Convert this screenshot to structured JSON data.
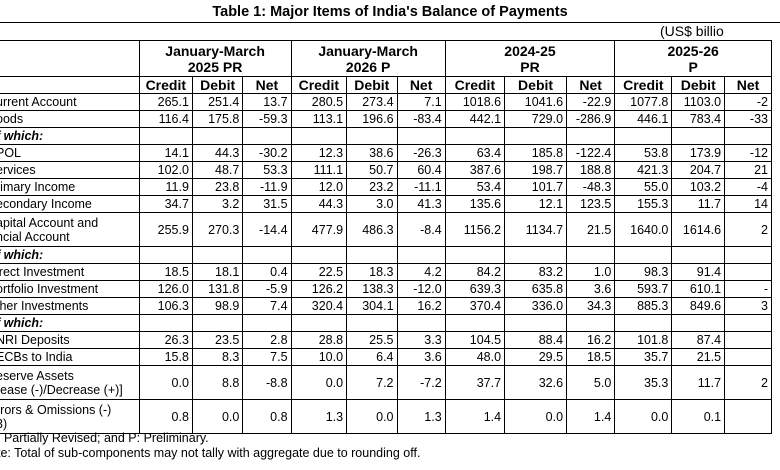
{
  "title": "Table 1: Major Items of India's Balance of Payments",
  "units": "(US$ billio",
  "periods": [
    "January-March\n2025 PR",
    "January-March\n2026 P",
    "2024-25\nPR",
    "2025-26\nP"
  ],
  "subheaders": [
    "Credit",
    "Debit",
    "Net",
    "Credit",
    "Debit",
    "Net",
    "Credit",
    "Debit",
    "Net",
    "Credit",
    "Debit",
    "Net"
  ],
  "rows": [
    {
      "label": "urrent Account",
      "values": [
        "265.1",
        "251.4",
        "13.7",
        "280.5",
        "273.4",
        "7.1",
        "1018.6",
        "1041.6",
        "-22.9",
        "1077.8",
        "1103.0",
        "-2"
      ]
    },
    {
      "label": "oods",
      "values": [
        "116.4",
        "175.8",
        "-59.3",
        "113.1",
        "196.6",
        "-83.4",
        "442.1",
        "729.0",
        "-286.9",
        "446.1",
        "783.4",
        "-33"
      ]
    },
    {
      "label": "f which:",
      "sub": true,
      "values": [
        "",
        "",
        "",
        "",
        "",
        "",
        "",
        "",
        "",
        "",
        "",
        ""
      ]
    },
    {
      "label": "POL",
      "values": [
        "14.1",
        "44.3",
        "-30.2",
        "12.3",
        "38.6",
        "-26.3",
        "63.4",
        "185.8",
        "-122.4",
        "53.8",
        "173.9",
        "-12"
      ]
    },
    {
      "label": "ervices",
      "values": [
        "102.0",
        "48.7",
        "53.3",
        "111.1",
        "50.7",
        "60.4",
        "387.6",
        "198.7",
        "188.8",
        "421.3",
        "204.7",
        "21"
      ]
    },
    {
      "label": "rimary Income",
      "values": [
        "11.9",
        "23.8",
        "-11.9",
        "12.0",
        "23.2",
        "-11.1",
        "53.4",
        "101.7",
        "-48.3",
        "55.0",
        "103.2",
        "-4"
      ]
    },
    {
      "label": "econdary Income",
      "values": [
        "34.7",
        "3.2",
        "31.5",
        "44.3",
        "3.0",
        "41.3",
        "135.6",
        "12.1",
        "123.5",
        "155.3",
        "11.7",
        "14"
      ]
    },
    {
      "label": "apital Account and\nncial Account",
      "tall": true,
      "values": [
        "255.9",
        "270.3",
        "-14.4",
        "477.9",
        "486.3",
        "-8.4",
        "1156.2",
        "1134.7",
        "21.5",
        "1640.0",
        "1614.6",
        "2"
      ]
    },
    {
      "label": "f which:",
      "sub": true,
      "values": [
        "",
        "",
        "",
        "",
        "",
        "",
        "",
        "",
        "",
        "",
        "",
        ""
      ]
    },
    {
      "label": "irect Investment",
      "values": [
        "18.5",
        "18.1",
        "0.4",
        "22.5",
        "18.3",
        "4.2",
        "84.2",
        "83.2",
        "1.0",
        "98.3",
        "91.4",
        ""
      ]
    },
    {
      "label": "ortfolio Investment",
      "values": [
        "126.0",
        "131.8",
        "-5.9",
        "126.2",
        "138.3",
        "-12.0",
        "639.3",
        "635.8",
        "3.6",
        "593.7",
        "610.1",
        "-"
      ]
    },
    {
      "label": "ther Investments",
      "values": [
        "106.3",
        "98.9",
        "7.4",
        "320.4",
        "304.1",
        "16.2",
        "370.4",
        "336.0",
        "34.3",
        "885.3",
        "849.6",
        "3"
      ]
    },
    {
      "label": "f which:",
      "sub": true,
      "values": [
        "",
        "",
        "",
        "",
        "",
        "",
        "",
        "",
        "",
        "",
        "",
        ""
      ]
    },
    {
      "label": "NRI Deposits",
      "values": [
        "26.3",
        "23.5",
        "2.8",
        "28.8",
        "25.5",
        "3.3",
        "104.5",
        "88.4",
        "16.2",
        "101.8",
        "87.4",
        ""
      ]
    },
    {
      "label": "ECBs to India",
      "values": [
        "15.8",
        "8.3",
        "7.5",
        "10.0",
        "6.4",
        "3.6",
        "48.0",
        "29.5",
        "18.5",
        "35.7",
        "21.5",
        ""
      ]
    },
    {
      "label": "eserve Assets\nrease (-)/Decrease (+)]",
      "tall": true,
      "values": [
        "0.0",
        "8.8",
        "-8.8",
        "0.0",
        "7.2",
        "-7.2",
        "37.7",
        "32.6",
        "5.0",
        "35.3",
        "11.7",
        "2"
      ]
    },
    {
      "label": "rrors & Omissions (-)\n3)",
      "tall": true,
      "values": [
        "0.8",
        "0.0",
        "0.8",
        "1.3",
        "0.0",
        "1.3",
        "1.4",
        "0.0",
        "1.4",
        "0.0",
        "0.1",
        ""
      ]
    }
  ],
  "footnotes": [
    ": Partially Revised; and P: Preliminary.",
    "te: Total of sub-components may not tally with aggregate due to rounding off."
  ]
}
